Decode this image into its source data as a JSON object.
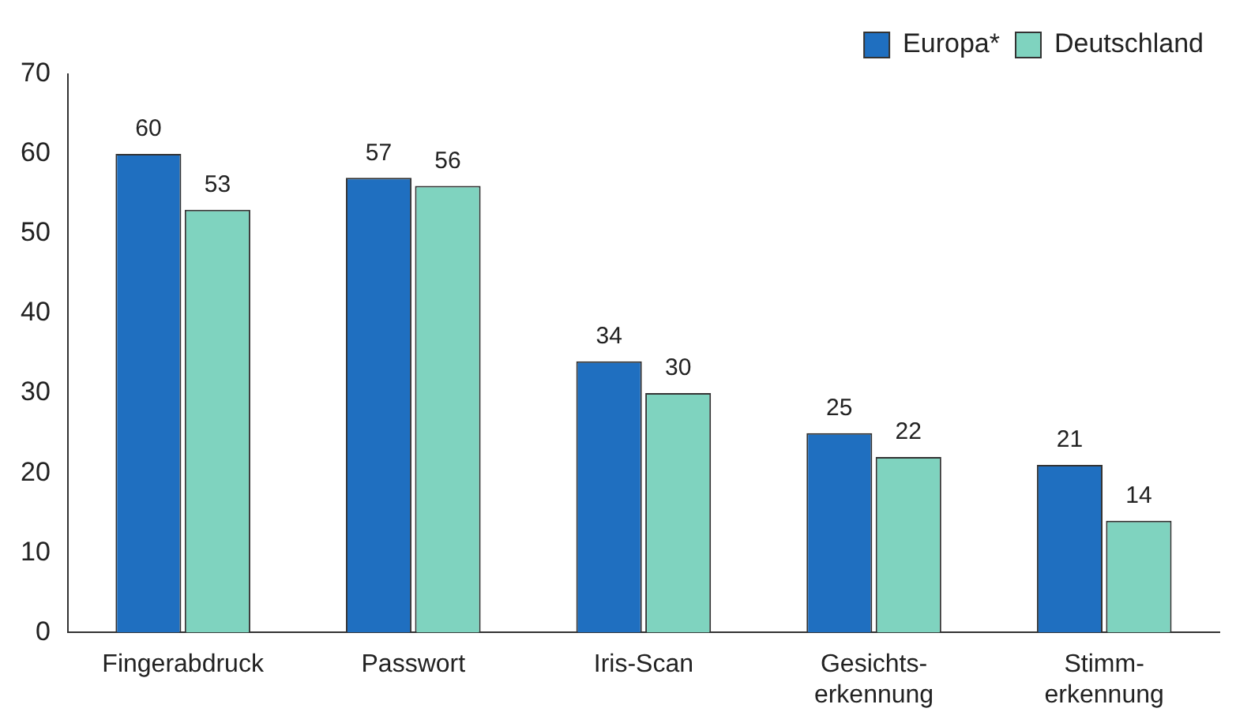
{
  "chart_data": {
    "type": "bar",
    "categories": [
      "Fingerabdruck",
      "Passwort",
      "Iris-Scan",
      "Gesichts-\nerkennung",
      "Stimm-\nerkennung"
    ],
    "series": [
      {
        "name": "Europa*",
        "color": "#1f6fc0",
        "values": [
          60,
          57,
          34,
          25,
          21
        ]
      },
      {
        "name": "Deutschland",
        "color": "#7fd3bf",
        "values": [
          53,
          56,
          30,
          22,
          14
        ]
      }
    ],
    "ylim": [
      0,
      70
    ],
    "yticks": [
      0,
      10,
      20,
      30,
      40,
      50,
      60,
      70
    ],
    "grid": false,
    "legend": "top right",
    "data_labels": true
  }
}
